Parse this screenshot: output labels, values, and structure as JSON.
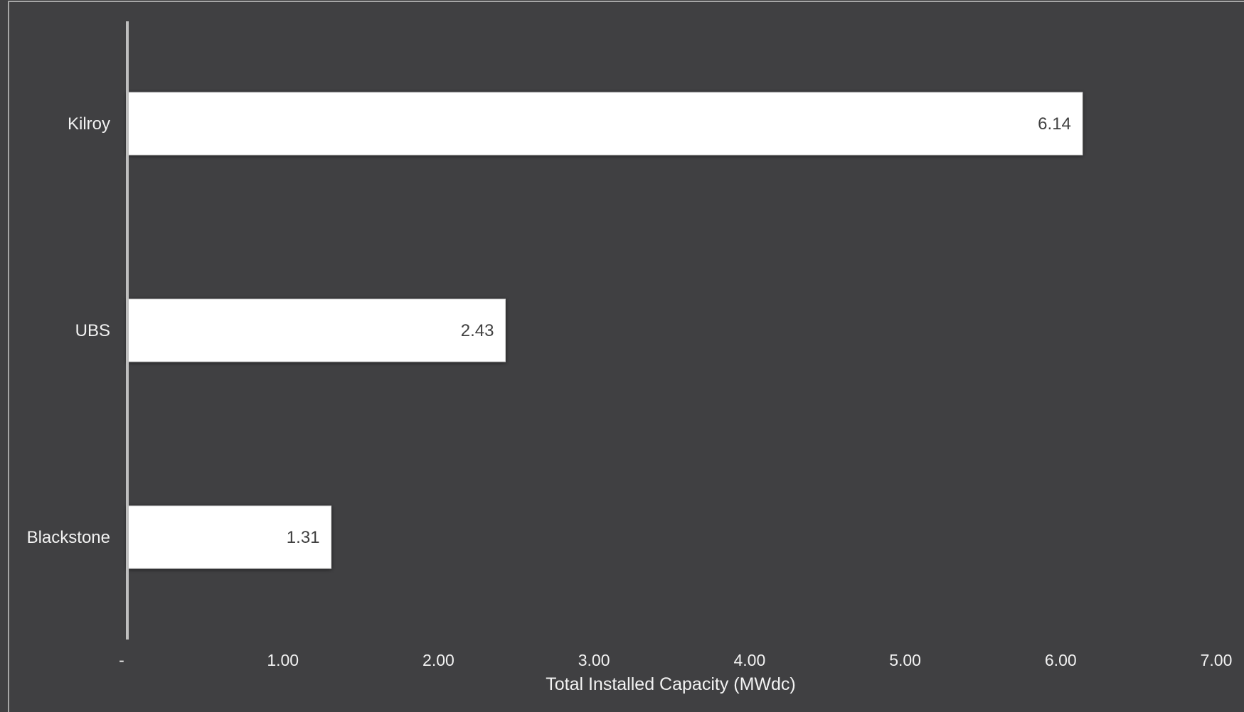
{
  "chart_data": {
    "type": "bar",
    "orientation": "horizontal",
    "categories": [
      "Kilroy",
      "UBS",
      "Blackstone"
    ],
    "values": [
      6.14,
      2.43,
      1.31
    ],
    "data_labels": [
      "6.14",
      "2.43",
      "1.31"
    ],
    "title": "",
    "xlabel": "Total Installed Capacity (MWdc)",
    "ylabel": "",
    "xlim": [
      0,
      7
    ],
    "xticks": [
      0,
      1,
      2,
      3,
      4,
      5,
      6,
      7
    ],
    "xtick_labels": [
      "-",
      "1.00",
      "2.00",
      "3.00",
      "4.00",
      "5.00",
      "6.00",
      "7.00"
    ],
    "grid": false,
    "legend": "none"
  },
  "colors": {
    "background": "#404042",
    "frame": "#a6a6a6",
    "bar_fill": "#ffffff",
    "bar_edge": "#d9d9d9",
    "axis_line": "#bfbfbf",
    "text": "#f2f2f2",
    "value_text": "#404040"
  }
}
